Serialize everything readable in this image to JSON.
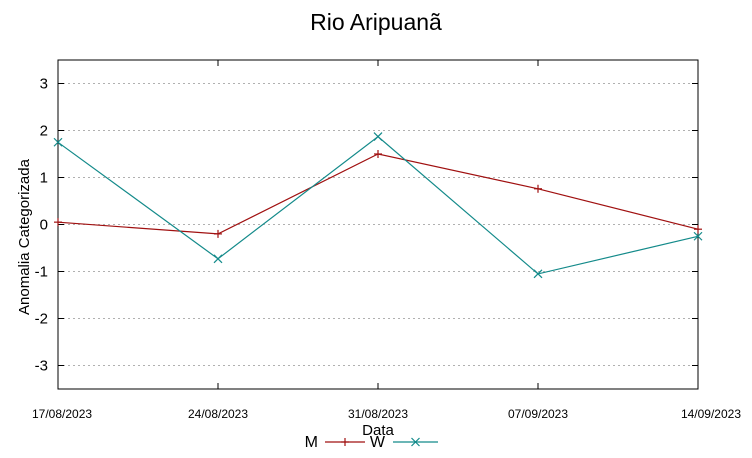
{
  "chart_data": {
    "type": "line",
    "title": "Rio Aripuanã",
    "xlabel": "Data",
    "ylabel": "Anomalia Categorizada",
    "categories": [
      "17/08/2023",
      "24/08/2023",
      "31/08/2023",
      "07/09/2023",
      "14/09/2023"
    ],
    "ylim": [
      -3.5,
      3.5
    ],
    "yticks": [
      3,
      2,
      1,
      0,
      -1,
      -2,
      -3
    ],
    "grid": "horizontal-dotted",
    "legend_position": "bottom-center",
    "series": [
      {
        "name": "M",
        "values": [
          0.05,
          -0.2,
          1.5,
          0.76,
          -0.1
        ],
        "color": "#a01010",
        "marker": "plus"
      },
      {
        "name": "W",
        "values": [
          1.75,
          -0.73,
          1.87,
          -1.05,
          -0.25
        ],
        "color": "#138a8a",
        "marker": "cross"
      }
    ]
  }
}
